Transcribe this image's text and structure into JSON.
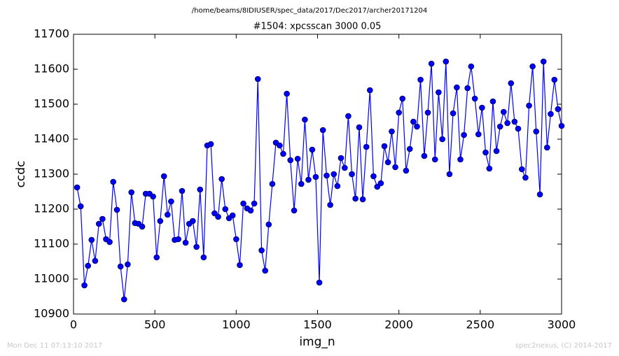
{
  "chart_data": {
    "type": "line",
    "suptitle": "/home/beams/8IDIUSER/spec_data/2017/Dec2017/archer20171204",
    "title": "#1504: xpcsscan 3000 0.05",
    "x_label": "img_n",
    "y_label": "ccdc",
    "footer_left": "Mon Dec 11 07:13:10 2017",
    "footer_right": "spec2nexus, (C) 2014-2017",
    "color": "#0000ff",
    "marker": "circle",
    "x": [
      22,
      44,
      67,
      89,
      111,
      133,
      156,
      178,
      200,
      222,
      244,
      267,
      289,
      311,
      333,
      356,
      378,
      400,
      422,
      444,
      467,
      489,
      511,
      533,
      556,
      578,
      600,
      622,
      644,
      667,
      689,
      711,
      733,
      756,
      778,
      800,
      822,
      844,
      867,
      889,
      911,
      933,
      956,
      978,
      1000,
      1022,
      1044,
      1067,
      1089,
      1111,
      1133,
      1156,
      1178,
      1200,
      1222,
      1244,
      1267,
      1289,
      1311,
      1333,
      1356,
      1378,
      1400,
      1422,
      1444,
      1467,
      1489,
      1511,
      1533,
      1556,
      1578,
      1600,
      1622,
      1644,
      1667,
      1689,
      1711,
      1733,
      1756,
      1778,
      1800,
      1822,
      1844,
      1867,
      1889,
      1911,
      1933,
      1956,
      1978,
      2000,
      2022,
      2044,
      2067,
      2089,
      2111,
      2133,
      2156,
      2178,
      2200,
      2222,
      2244,
      2267,
      2289,
      2311,
      2333,
      2356,
      2378,
      2400,
      2422,
      2444,
      2467,
      2489,
      2511,
      2533,
      2556,
      2578,
      2600,
      2622,
      2644,
      2667,
      2689,
      2711,
      2733,
      2756,
      2778,
      2800,
      2822,
      2844,
      2867,
      2889,
      2911,
      2933,
      2956,
      2978,
      3000
    ],
    "values": [
      11262,
      11208,
      10982,
      11038,
      11112,
      11052,
      11158,
      11172,
      11114,
      11106,
      11278,
      11198,
      11036,
      10942,
      11042,
      11248,
      11160,
      11158,
      11150,
      11244,
      11244,
      11236,
      11062,
      11166,
      11294,
      11184,
      11222,
      11112,
      11114,
      11252,
      11104,
      11158,
      11166,
      11092,
      11256,
      11062,
      11382,
      11386,
      11188,
      11178,
      11286,
      11200,
      11174,
      11182,
      11114,
      11040,
      11216,
      11202,
      11196,
      11216,
      11572,
      11082,
      11024,
      11156,
      11272,
      11390,
      11382,
      11358,
      11530,
      11340,
      11196,
      11344,
      11272,
      11456,
      11284,
      11370,
      11292,
      10990,
      11426,
      11296,
      11212,
      11300,
      11266,
      11346,
      11318,
      11466,
      11300,
      11230,
      11434,
      11228,
      11378,
      11540,
      11294,
      11264,
      11274,
      11380,
      11334,
      11422,
      11320,
      11476,
      11516,
      11310,
      11372,
      11450,
      11436,
      11570,
      11352,
      11476,
      11616,
      11342,
      11534,
      11400,
      11622,
      11300,
      11474,
      11548,
      11342,
      11412,
      11546,
      11608,
      11516,
      11414,
      11490,
      11362,
      11316,
      11508,
      11366,
      11436,
      11478,
      11446,
      11560,
      11450,
      11430,
      11314,
      11290,
      11496,
      11608,
      11422,
      11242,
      11622,
      11376,
      11472,
      11570,
      11486,
      11438
    ],
    "xlim": [
      0,
      3000
    ],
    "xticks": [
      0,
      500,
      1000,
      1500,
      2000,
      2500,
      3000
    ],
    "ylim": [
      10900,
      11700
    ],
    "yticks": [
      10900,
      11000,
      11100,
      11200,
      11300,
      11400,
      11500,
      11600,
      11700
    ]
  }
}
